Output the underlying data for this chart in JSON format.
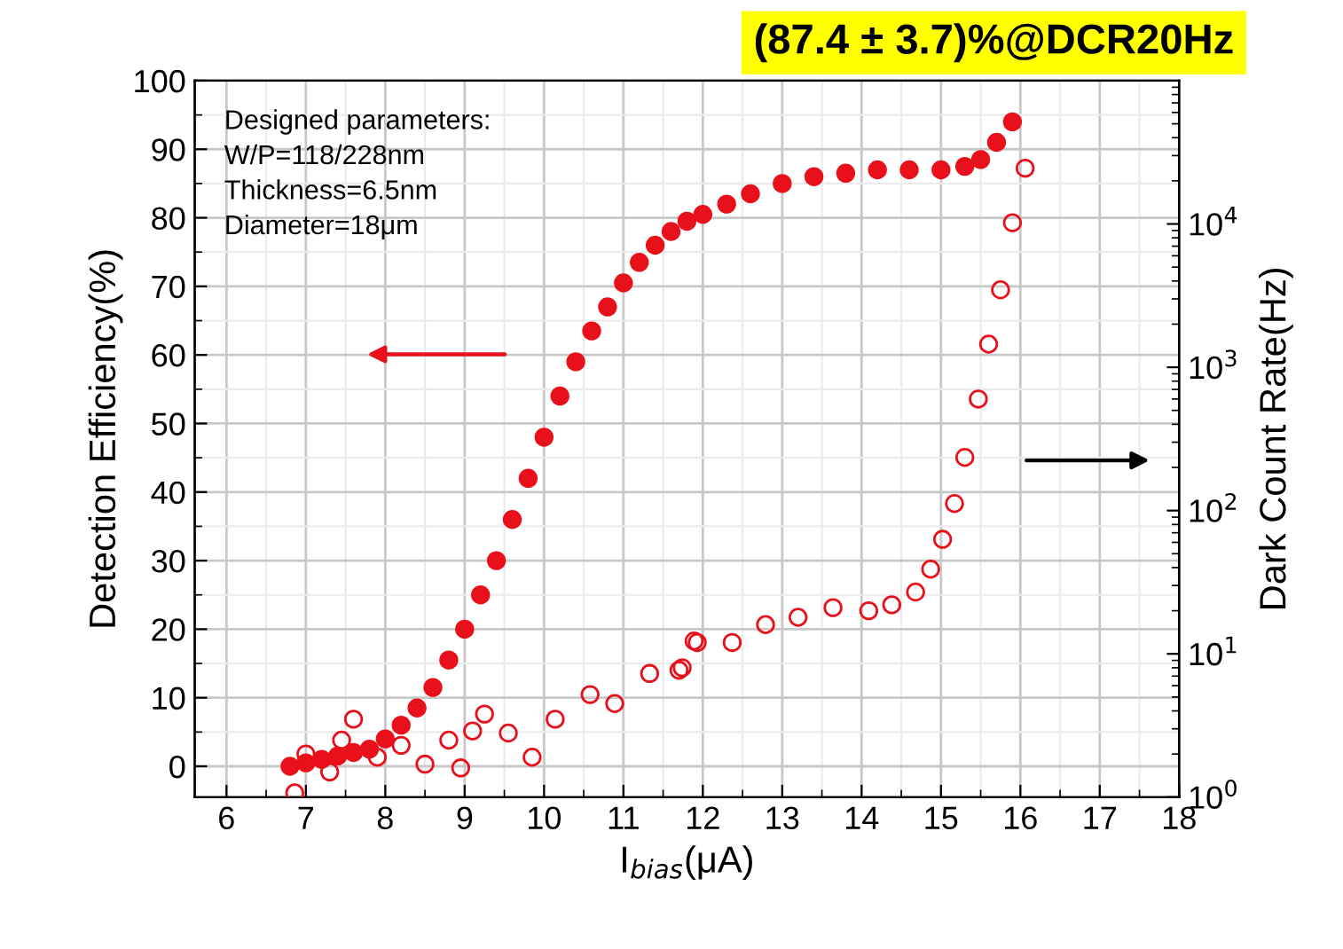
{
  "chart_data": {
    "type": "scatter",
    "xlabel": "I$_{bias}$(μA)",
    "ylabel": "Detection Efficiency(%)",
    "y2label": "Dark Count Rate(Hz)",
    "annotations": [
      "(87.4 ± 3.7)%@DCR20Hz",
      "Designed parameters:\nW/P=118/228nm\nThickness=6.5nm\nDiameter=18μm"
    ],
    "xlim": [
      5.6,
      18
    ],
    "xticks": [
      6,
      7,
      8,
      9,
      10,
      11,
      12,
      13,
      14,
      15,
      16,
      17,
      18
    ],
    "ylim": [
      -4.5,
      100
    ],
    "yticks": [
      0,
      10,
      20,
      30,
      40,
      50,
      60,
      70,
      80,
      90,
      100
    ],
    "log": "y2",
    "y2lim": [
      1,
      100000
    ],
    "y2ticks": [
      {
        "value": 1,
        "label": "10$^{0}$"
      },
      {
        "value": 10,
        "label": "10$^{1}$"
      },
      {
        "value": 100,
        "label": "10$^{2}$"
      },
      {
        "value": 1000,
        "label": "10$^{3}$"
      },
      {
        "value": 10000,
        "label": "10$^{4}$"
      }
    ],
    "grid": true,
    "marker": "circle",
    "series": [
      {
        "color": "#e8101a",
        "x": [
          6.8,
          7.0,
          7.2,
          7.4,
          7.6,
          7.8,
          8.0,
          8.2,
          8.4,
          8.6,
          8.8,
          9.0,
          9.2,
          9.4,
          9.6,
          9.8,
          10.0,
          10.2,
          10.4,
          10.6,
          10.8,
          11.0,
          11.2,
          11.4,
          11.6,
          11.8,
          12.0,
          12.3,
          12.6,
          13.0,
          13.4,
          13.8,
          14.2,
          14.6,
          15.0,
          15.3,
          15.5,
          15.7,
          15.9
        ],
        "values": [
          0,
          0.5,
          1,
          1.5,
          2,
          2.5,
          4,
          6,
          8.5,
          11.5,
          15.5,
          20,
          25,
          30,
          36,
          42,
          48,
          54,
          59,
          63.5,
          67,
          70.5,
          73.5,
          76,
          78,
          79.5,
          80.5,
          82,
          83.5,
          85,
          86,
          86.5,
          87,
          87,
          87,
          87.5,
          88.5,
          91,
          94
        ]
      },
      {
        "color": "#e8101a",
        "axis": "y2",
        "x": [
          6.86,
          7.0,
          7.3,
          7.45,
          7.6,
          7.9,
          8.2,
          8.5,
          8.8,
          8.95,
          9.1,
          9.25,
          9.55,
          9.85,
          10.14,
          10.58,
          10.89,
          11.33,
          11.7,
          11.74,
          11.89,
          11.93,
          12.37,
          12.79,
          13.2,
          13.64,
          14.09,
          14.38,
          14.68,
          14.87,
          15.02,
          15.17,
          15.3,
          15.47,
          15.6,
          15.75,
          15.9,
          16.06
        ],
        "values": [
          1.07,
          2.0,
          1.5,
          2.5,
          3.5,
          1.9,
          2.3,
          1.7,
          2.5,
          1.6,
          2.9,
          3.8,
          2.8,
          1.9,
          3.5,
          5.2,
          4.5,
          7.3,
          7.7,
          8,
          12.3,
          12,
          12,
          16,
          18,
          21,
          20,
          22,
          27,
          39,
          63,
          112,
          235,
          600,
          1450,
          3470,
          10200,
          24500
        ]
      }
    ]
  }
}
